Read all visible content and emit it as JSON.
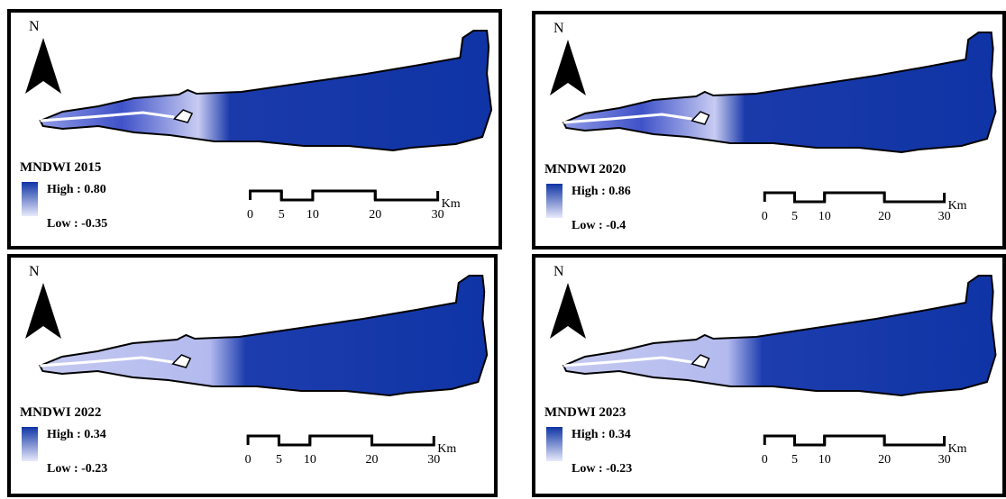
{
  "north": "N",
  "scale_bar": {
    "ticks": [
      0,
      5,
      10,
      20,
      30
    ],
    "unit": "Km"
  },
  "panels": [
    {
      "title": "MNDWI 2015",
      "high": "High : 0.80",
      "low": "Low : -0.35"
    },
    {
      "title": "MNDWI 2020",
      "high": "High : 0.86",
      "low": "Low : -0.4"
    },
    {
      "title": "MNDWI 2022",
      "high": "High : 0.34",
      "low": "Low : -0.23"
    },
    {
      "title": "MNDWI 2023",
      "high": "High : 0.34",
      "low": "Low : -0.23"
    }
  ]
}
